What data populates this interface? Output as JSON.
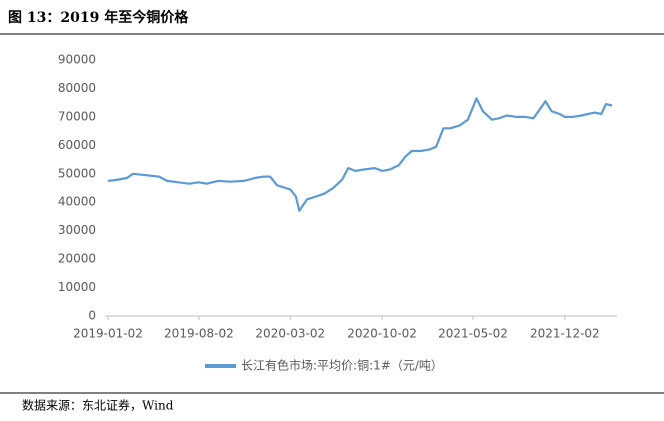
{
  "header": {
    "title": "图 13：2019 年至今铜价格"
  },
  "chart_data": {
    "type": "line",
    "x": [
      "2019-01-02",
      "2019-01-20",
      "2019-02-15",
      "2019-03-01",
      "2019-04-01",
      "2019-05-01",
      "2019-05-20",
      "2019-06-15",
      "2019-07-10",
      "2019-08-02",
      "2019-08-20",
      "2019-09-15",
      "2019-10-15",
      "2019-11-15",
      "2019-12-10",
      "2019-12-31",
      "2020-01-15",
      "2020-01-31",
      "2020-02-20",
      "2020-03-02",
      "2020-03-15",
      "2020-03-23",
      "2020-04-10",
      "2020-05-01",
      "2020-05-20",
      "2020-06-10",
      "2020-07-01",
      "2020-07-15",
      "2020-08-01",
      "2020-08-20",
      "2020-09-15",
      "2020-10-02",
      "2020-10-20",
      "2020-11-10",
      "2020-11-25",
      "2020-12-10",
      "2020-12-31",
      "2021-01-20",
      "2021-02-05",
      "2021-02-22",
      "2021-03-10",
      "2021-04-01",
      "2021-04-20",
      "2021-05-10",
      "2021-05-25",
      "2021-06-15",
      "2021-07-01",
      "2021-07-20",
      "2021-08-10",
      "2021-09-01",
      "2021-09-20",
      "2021-10-18",
      "2021-11-01",
      "2021-11-20",
      "2021-12-02",
      "2021-12-20",
      "2022-01-10",
      "2022-01-25",
      "2022-02-10",
      "2022-02-25",
      "2022-03-08",
      "2022-03-22"
    ],
    "series": [
      {
        "name": "长江有色市场:平均价:铜:1#（元/吨）",
        "color": "#5b9bd5",
        "values": [
          47500,
          47800,
          48500,
          50000,
          49500,
          49000,
          47500,
          47000,
          46500,
          47000,
          46500,
          47500,
          47200,
          47500,
          48500,
          49000,
          49000,
          46000,
          45000,
          44500,
          42000,
          37000,
          41000,
          42000,
          43000,
          45000,
          48000,
          52000,
          51000,
          51500,
          52000,
          51000,
          51500,
          53000,
          56000,
          58000,
          58000,
          58500,
          59500,
          66000,
          66000,
          67000,
          69000,
          76500,
          72000,
          69000,
          69500,
          70500,
          70000,
          70000,
          69500,
          75500,
          72000,
          71000,
          70000,
          70000,
          70500,
          71000,
          71500,
          71000,
          74500,
          74000
        ]
      }
    ],
    "xlim": [
      "2019-01-02",
      "2022-03-22"
    ],
    "xticks": [
      "2019-01-02",
      "2019-08-02",
      "2020-03-02",
      "2020-10-02",
      "2021-05-02",
      "2021-12-02"
    ],
    "ylim": [
      0,
      90000
    ],
    "yticks": [
      0,
      10000,
      20000,
      30000,
      40000,
      50000,
      60000,
      70000,
      80000,
      90000
    ]
  },
  "footer": {
    "source": "数据来源：东北证券，Wind"
  }
}
